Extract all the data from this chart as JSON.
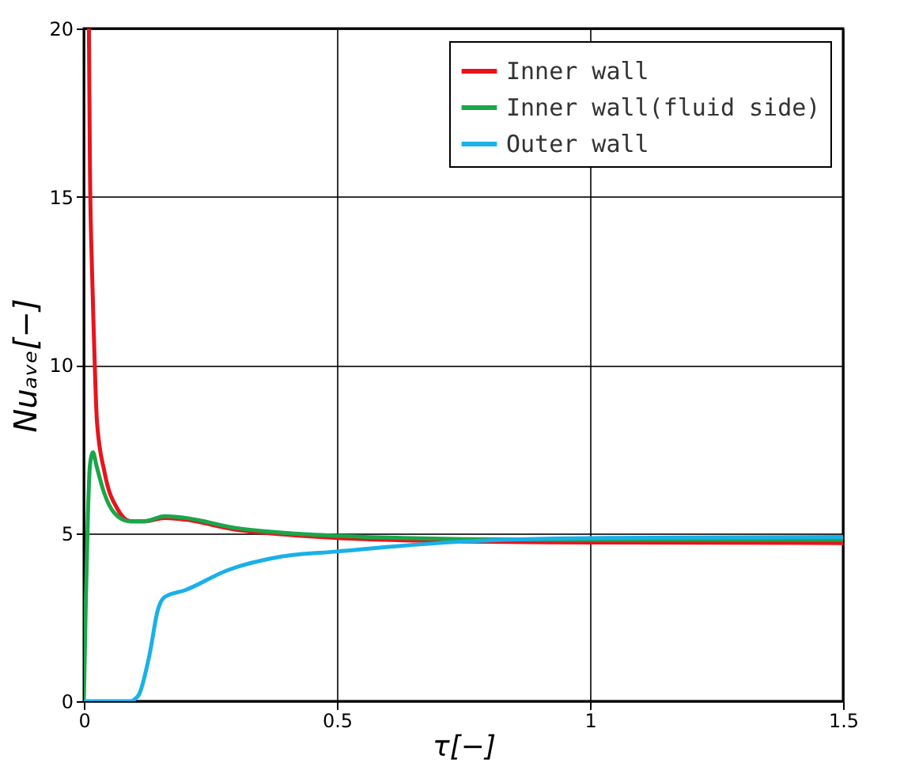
{
  "chart_data": {
    "type": "line",
    "xlabel": "τ[−]",
    "ylabel": "Nuₐᵥₑ[−]",
    "xlim": [
      0,
      1.5
    ],
    "xticks": [
      0,
      0.5,
      1,
      1.5
    ],
    "ylim": [
      0,
      20
    ],
    "yticks": [
      0,
      5,
      10,
      15,
      20
    ],
    "grid": true,
    "legend": "top right",
    "series": [
      {
        "name": "Inner wall",
        "color": "#e8141c",
        "x": [
          0.01,
          0.012,
          0.016,
          0.02,
          0.026,
          0.041,
          0.067,
          0.093,
          0.12,
          0.16,
          0.2,
          0.3,
          0.4,
          0.5,
          0.75,
          1,
          1.5
        ],
        "values": [
          20,
          16,
          12.9,
          10.8,
          8.3,
          6.8,
          5.7,
          5.35,
          5.35,
          5.45,
          5.4,
          5.1,
          4.95,
          4.85,
          4.75,
          4.72,
          4.7
        ]
      },
      {
        "name": "Inner wall(fluid side)",
        "color": "#1aa64a",
        "x": [
          0,
          0.004,
          0.008,
          0.012,
          0.018,
          0.025,
          0.04,
          0.06,
          0.09,
          0.12,
          0.16,
          0.2,
          0.3,
          0.4,
          0.5,
          0.75,
          1,
          1.5
        ],
        "values": [
          0,
          3,
          5.5,
          7,
          7.4,
          7,
          6.2,
          5.6,
          5.35,
          5.35,
          5.5,
          5.45,
          5.15,
          5,
          4.92,
          4.82,
          4.8,
          4.8
        ]
      },
      {
        "name": "Outer wall",
        "color": "#1ab0e8",
        "x": [
          0,
          0.093,
          0.1,
          0.109,
          0.13,
          0.146,
          0.16,
          0.2,
          0.285,
          0.39,
          0.5,
          0.75,
          1,
          1.5
        ],
        "values": [
          0,
          0,
          0.05,
          0.2,
          1.4,
          2.7,
          3.1,
          3.3,
          3.9,
          4.3,
          4.45,
          4.75,
          4.85,
          4.88
        ]
      }
    ]
  }
}
